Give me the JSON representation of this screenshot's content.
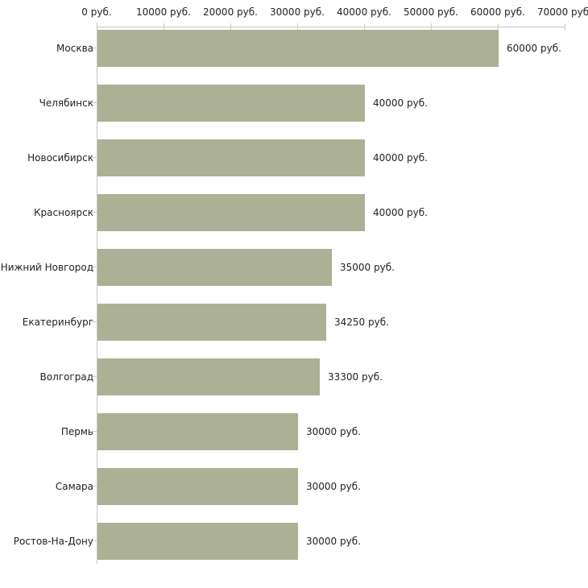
{
  "chart_data": {
    "type": "bar",
    "orientation": "horizontal",
    "title": "",
    "xlabel": "",
    "ylabel": "",
    "unit": "руб.",
    "categories": [
      "Москва",
      "Челябинск",
      "Новосибирск",
      "Красноярск",
      "Нижний Новгород",
      "Екатеринбург",
      "Волгоград",
      "Пермь",
      "Самара",
      "Ростов-На-Дону"
    ],
    "values": [
      60000,
      40000,
      40000,
      40000,
      35000,
      34250,
      33300,
      30000,
      30000,
      30000
    ],
    "value_labels": [
      "60000 руб.",
      "40000 руб.",
      "40000 руб.",
      "40000 руб.",
      "35000 руб.",
      "34250 руб.",
      "33300 руб.",
      "30000 руб.",
      "30000 руб.",
      "30000 руб."
    ],
    "x_ticks": [
      {
        "value": 0,
        "label": "0 руб."
      },
      {
        "value": 10000,
        "label": "10000 руб."
      },
      {
        "value": 20000,
        "label": "20000 руб."
      },
      {
        "value": 30000,
        "label": "30000 руб."
      },
      {
        "value": 40000,
        "label": "40000 руб."
      },
      {
        "value": 50000,
        "label": "50000 руб."
      },
      {
        "value": 60000,
        "label": "60000 руб."
      },
      {
        "value": 70000,
        "label": "70000 руб."
      }
    ],
    "xlim": [
      0,
      70000
    ],
    "grid": false,
    "legend": false,
    "colors": {
      "bar": "#acb195",
      "axis": "#c6c6c6",
      "tick_mark": "#cdd0a6",
      "text": "#222222",
      "background": "#ffffff"
    }
  }
}
